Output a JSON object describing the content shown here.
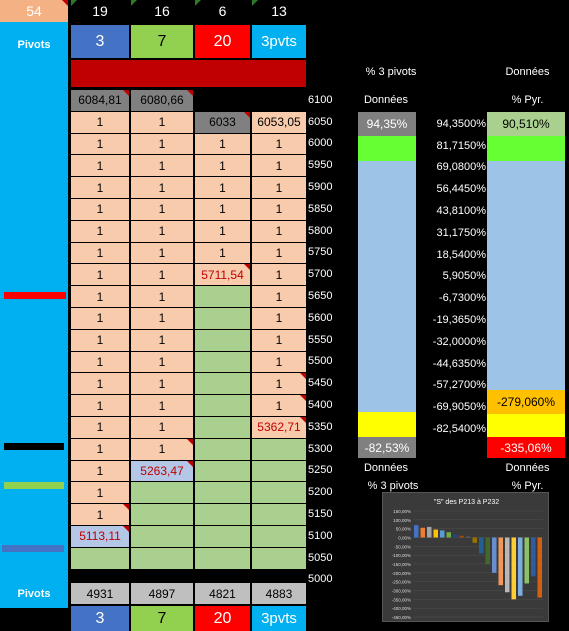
{
  "header": {
    "total": "54",
    "counts": [
      "19",
      "16",
      "6",
      "13"
    ],
    "pivots_label": "Pivots",
    "pivot_values": [
      "3",
      "7",
      "20",
      "3pvts"
    ]
  },
  "top_values": [
    "6084,81",
    "6080,66"
  ],
  "levels": [
    "6100",
    "6050",
    "6000",
    "5950",
    "5900",
    "5850",
    "5800",
    "5750",
    "5700",
    "5650",
    "5600",
    "5550",
    "5500",
    "5450",
    "5400",
    "5350",
    "5300",
    "5250",
    "5200",
    "5150",
    "5100",
    "5050",
    "5000"
  ],
  "grid": {
    "row_6050": [
      "1",
      "1",
      "6033",
      "6053,05"
    ],
    "one": "1",
    "v_5700": "5711,54",
    "v_5350": "5362,71",
    "v_5250": "5263,47",
    "v_5100": "5113,11"
  },
  "right_panel": {
    "header_pct3": "% 3 pivots",
    "header_donnees": "Données",
    "sub_donnees": "Données",
    "sub_pyr": "% Pyr.",
    "pct3_top": "94,35%",
    "pct3_bottom": "-82,53%",
    "pyr_top": "90,510%",
    "pyr_5450": "-279,060%",
    "pyr_5350": "-335,06%",
    "values": [
      "94,3500%",
      "81,7150%",
      "69,0800%",
      "56,4450%",
      "43,8100%",
      "31,1750%",
      "18,5400%",
      "5,9050%",
      "-6,7300%",
      "-19,3650%",
      "-32,0000%",
      "-44,6350%",
      "-57,2700%",
      "-69,9050%",
      "-82,5400%"
    ],
    "footer_donnees_1": "Données",
    "footer_donnees_2": "Données",
    "footer_pct3": "% 3 pivots",
    "footer_pyr": "% Pyr."
  },
  "mini_chart": {
    "title": "\"S\" des P213 à P232",
    "y_ticks": [
      "150,00%",
      "100,00%",
      "50,00%",
      "0,00%",
      "-50,00%",
      "-100,00%",
      "-150,00%",
      "-200,00%",
      "-250,00%",
      "-300,00%",
      "-350,00%",
      "-400,00%",
      "-450,00%"
    ]
  },
  "bottom": {
    "pivots_label": "Pivots",
    "sums": [
      "4931",
      "4897",
      "4821",
      "4883"
    ],
    "pivot_values": [
      "3",
      "7",
      "20",
      "3pvts"
    ]
  },
  "chart_data": {
    "type": "bar",
    "title": "\"S\" des P213 à P232",
    "ylim": [
      -450,
      150
    ],
    "values": [
      70,
      55,
      60,
      45,
      40,
      30,
      20,
      10,
      5,
      -30,
      -90,
      -150,
      -200,
      -270,
      -310,
      -350,
      -330,
      -260,
      -220,
      -340
    ],
    "colors": [
      "#4472c4",
      "#ed7d31",
      "#a5a5a5",
      "#ffc000",
      "#5b9bd5",
      "#70ad47",
      "#264478",
      "#9e480e",
      "#636363",
      "#997300",
      "#255e91",
      "#43682b",
      "#698ed0",
      "#f1975a",
      "#b7b7b7",
      "#ffcd33",
      "#7cafdd",
      "#8cc168",
      "#335aa1",
      "#d26012"
    ]
  }
}
